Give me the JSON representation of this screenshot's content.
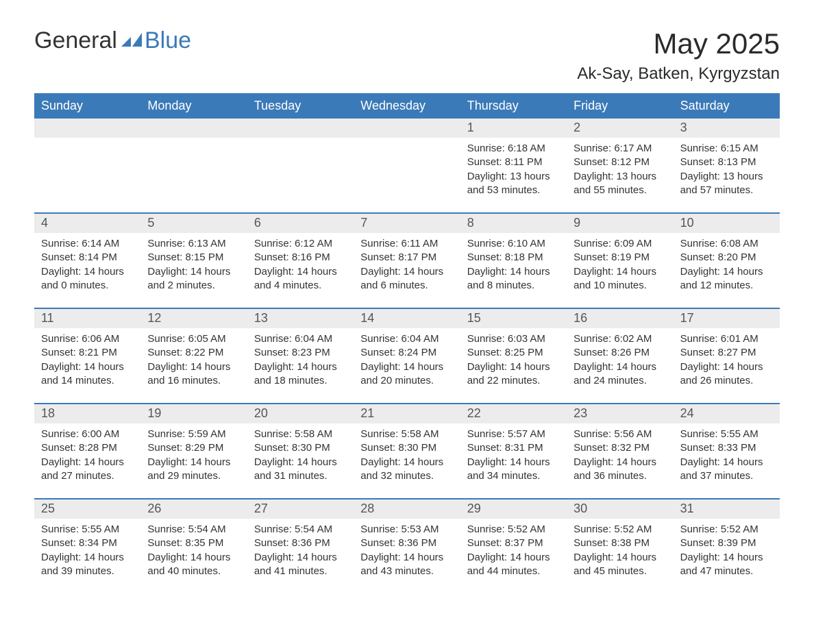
{
  "brand": {
    "part1": "General",
    "part2": "Blue",
    "mark_color": "#3b7ab8"
  },
  "header": {
    "month_year": "May 2025",
    "location": "Ak-Say, Batken, Kyrgyzstan"
  },
  "colors": {
    "header_bg": "#3b7ab8",
    "header_text": "#ffffff",
    "day_bar_bg": "#ececec",
    "day_bar_text": "#555555",
    "body_text": "#333333",
    "page_bg": "#ffffff",
    "week_separator": "#3b7ab8"
  },
  "typography": {
    "month_year_fontsize": 42,
    "location_fontsize": 24,
    "weekday_fontsize": 18,
    "daynum_fontsize": 18,
    "body_fontsize": 15
  },
  "calendar": {
    "type": "table",
    "weekdays": [
      "Sunday",
      "Monday",
      "Tuesday",
      "Wednesday",
      "Thursday",
      "Friday",
      "Saturday"
    ],
    "weeks": [
      [
        {
          "day": "",
          "sunrise": "",
          "sunset": "",
          "daylight1": "",
          "daylight2": ""
        },
        {
          "day": "",
          "sunrise": "",
          "sunset": "",
          "daylight1": "",
          "daylight2": ""
        },
        {
          "day": "",
          "sunrise": "",
          "sunset": "",
          "daylight1": "",
          "daylight2": ""
        },
        {
          "day": "",
          "sunrise": "",
          "sunset": "",
          "daylight1": "",
          "daylight2": ""
        },
        {
          "day": "1",
          "sunrise": "Sunrise: 6:18 AM",
          "sunset": "Sunset: 8:11 PM",
          "daylight1": "Daylight: 13 hours",
          "daylight2": "and 53 minutes."
        },
        {
          "day": "2",
          "sunrise": "Sunrise: 6:17 AM",
          "sunset": "Sunset: 8:12 PM",
          "daylight1": "Daylight: 13 hours",
          "daylight2": "and 55 minutes."
        },
        {
          "day": "3",
          "sunrise": "Sunrise: 6:15 AM",
          "sunset": "Sunset: 8:13 PM",
          "daylight1": "Daylight: 13 hours",
          "daylight2": "and 57 minutes."
        }
      ],
      [
        {
          "day": "4",
          "sunrise": "Sunrise: 6:14 AM",
          "sunset": "Sunset: 8:14 PM",
          "daylight1": "Daylight: 14 hours",
          "daylight2": "and 0 minutes."
        },
        {
          "day": "5",
          "sunrise": "Sunrise: 6:13 AM",
          "sunset": "Sunset: 8:15 PM",
          "daylight1": "Daylight: 14 hours",
          "daylight2": "and 2 minutes."
        },
        {
          "day": "6",
          "sunrise": "Sunrise: 6:12 AM",
          "sunset": "Sunset: 8:16 PM",
          "daylight1": "Daylight: 14 hours",
          "daylight2": "and 4 minutes."
        },
        {
          "day": "7",
          "sunrise": "Sunrise: 6:11 AM",
          "sunset": "Sunset: 8:17 PM",
          "daylight1": "Daylight: 14 hours",
          "daylight2": "and 6 minutes."
        },
        {
          "day": "8",
          "sunrise": "Sunrise: 6:10 AM",
          "sunset": "Sunset: 8:18 PM",
          "daylight1": "Daylight: 14 hours",
          "daylight2": "and 8 minutes."
        },
        {
          "day": "9",
          "sunrise": "Sunrise: 6:09 AM",
          "sunset": "Sunset: 8:19 PM",
          "daylight1": "Daylight: 14 hours",
          "daylight2": "and 10 minutes."
        },
        {
          "day": "10",
          "sunrise": "Sunrise: 6:08 AM",
          "sunset": "Sunset: 8:20 PM",
          "daylight1": "Daylight: 14 hours",
          "daylight2": "and 12 minutes."
        }
      ],
      [
        {
          "day": "11",
          "sunrise": "Sunrise: 6:06 AM",
          "sunset": "Sunset: 8:21 PM",
          "daylight1": "Daylight: 14 hours",
          "daylight2": "and 14 minutes."
        },
        {
          "day": "12",
          "sunrise": "Sunrise: 6:05 AM",
          "sunset": "Sunset: 8:22 PM",
          "daylight1": "Daylight: 14 hours",
          "daylight2": "and 16 minutes."
        },
        {
          "day": "13",
          "sunrise": "Sunrise: 6:04 AM",
          "sunset": "Sunset: 8:23 PM",
          "daylight1": "Daylight: 14 hours",
          "daylight2": "and 18 minutes."
        },
        {
          "day": "14",
          "sunrise": "Sunrise: 6:04 AM",
          "sunset": "Sunset: 8:24 PM",
          "daylight1": "Daylight: 14 hours",
          "daylight2": "and 20 minutes."
        },
        {
          "day": "15",
          "sunrise": "Sunrise: 6:03 AM",
          "sunset": "Sunset: 8:25 PM",
          "daylight1": "Daylight: 14 hours",
          "daylight2": "and 22 minutes."
        },
        {
          "day": "16",
          "sunrise": "Sunrise: 6:02 AM",
          "sunset": "Sunset: 8:26 PM",
          "daylight1": "Daylight: 14 hours",
          "daylight2": "and 24 minutes."
        },
        {
          "day": "17",
          "sunrise": "Sunrise: 6:01 AM",
          "sunset": "Sunset: 8:27 PM",
          "daylight1": "Daylight: 14 hours",
          "daylight2": "and 26 minutes."
        }
      ],
      [
        {
          "day": "18",
          "sunrise": "Sunrise: 6:00 AM",
          "sunset": "Sunset: 8:28 PM",
          "daylight1": "Daylight: 14 hours",
          "daylight2": "and 27 minutes."
        },
        {
          "day": "19",
          "sunrise": "Sunrise: 5:59 AM",
          "sunset": "Sunset: 8:29 PM",
          "daylight1": "Daylight: 14 hours",
          "daylight2": "and 29 minutes."
        },
        {
          "day": "20",
          "sunrise": "Sunrise: 5:58 AM",
          "sunset": "Sunset: 8:30 PM",
          "daylight1": "Daylight: 14 hours",
          "daylight2": "and 31 minutes."
        },
        {
          "day": "21",
          "sunrise": "Sunrise: 5:58 AM",
          "sunset": "Sunset: 8:30 PM",
          "daylight1": "Daylight: 14 hours",
          "daylight2": "and 32 minutes."
        },
        {
          "day": "22",
          "sunrise": "Sunrise: 5:57 AM",
          "sunset": "Sunset: 8:31 PM",
          "daylight1": "Daylight: 14 hours",
          "daylight2": "and 34 minutes."
        },
        {
          "day": "23",
          "sunrise": "Sunrise: 5:56 AM",
          "sunset": "Sunset: 8:32 PM",
          "daylight1": "Daylight: 14 hours",
          "daylight2": "and 36 minutes."
        },
        {
          "day": "24",
          "sunrise": "Sunrise: 5:55 AM",
          "sunset": "Sunset: 8:33 PM",
          "daylight1": "Daylight: 14 hours",
          "daylight2": "and 37 minutes."
        }
      ],
      [
        {
          "day": "25",
          "sunrise": "Sunrise: 5:55 AM",
          "sunset": "Sunset: 8:34 PM",
          "daylight1": "Daylight: 14 hours",
          "daylight2": "and 39 minutes."
        },
        {
          "day": "26",
          "sunrise": "Sunrise: 5:54 AM",
          "sunset": "Sunset: 8:35 PM",
          "daylight1": "Daylight: 14 hours",
          "daylight2": "and 40 minutes."
        },
        {
          "day": "27",
          "sunrise": "Sunrise: 5:54 AM",
          "sunset": "Sunset: 8:36 PM",
          "daylight1": "Daylight: 14 hours",
          "daylight2": "and 41 minutes."
        },
        {
          "day": "28",
          "sunrise": "Sunrise: 5:53 AM",
          "sunset": "Sunset: 8:36 PM",
          "daylight1": "Daylight: 14 hours",
          "daylight2": "and 43 minutes."
        },
        {
          "day": "29",
          "sunrise": "Sunrise: 5:52 AM",
          "sunset": "Sunset: 8:37 PM",
          "daylight1": "Daylight: 14 hours",
          "daylight2": "and 44 minutes."
        },
        {
          "day": "30",
          "sunrise": "Sunrise: 5:52 AM",
          "sunset": "Sunset: 8:38 PM",
          "daylight1": "Daylight: 14 hours",
          "daylight2": "and 45 minutes."
        },
        {
          "day": "31",
          "sunrise": "Sunrise: 5:52 AM",
          "sunset": "Sunset: 8:39 PM",
          "daylight1": "Daylight: 14 hours",
          "daylight2": "and 47 minutes."
        }
      ]
    ]
  }
}
